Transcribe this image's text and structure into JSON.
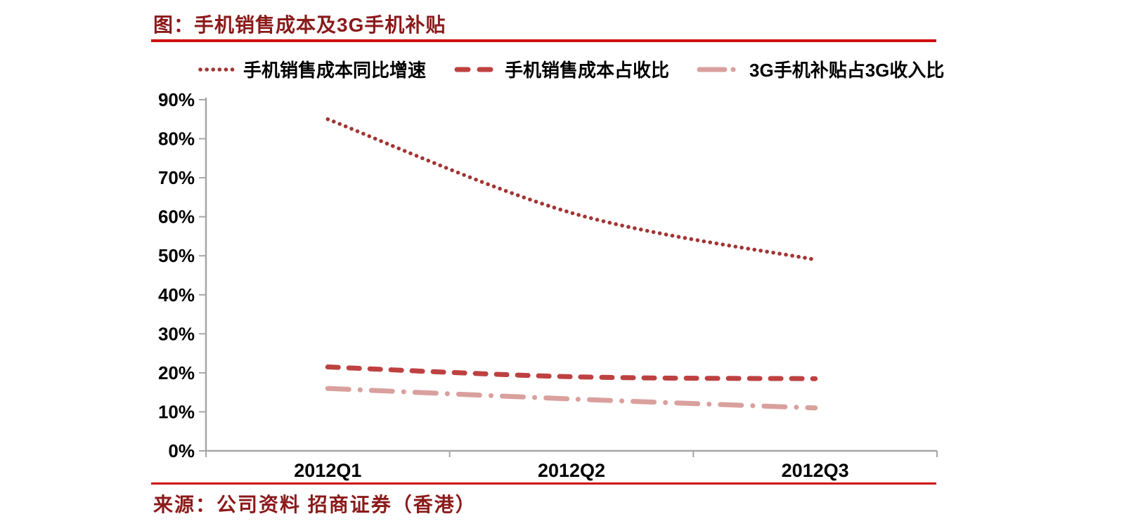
{
  "header": {
    "title": "图：手机销售成本及3G手机补贴"
  },
  "chart_data": {
    "type": "line",
    "title": "图：手机销售成本及3G手机补贴",
    "categories": [
      "2012Q1",
      "2012Q2",
      "2012Q3"
    ],
    "series": [
      {
        "name": "手机销售成本同比增速",
        "style": "dotted",
        "color": "#A23434",
        "values": [
          85,
          61,
          49
        ]
      },
      {
        "name": "手机销售成本占收比",
        "style": "dashed",
        "color": "#BE4141",
        "values": [
          21.5,
          19,
          18.5
        ]
      },
      {
        "name": "3G手机补贴占3G收入比",
        "style": "dash-dot",
        "color": "#D9A09E",
        "values": [
          16,
          13.3,
          11
        ]
      }
    ],
    "ylim": [
      0,
      90
    ],
    "ytick_step": 10,
    "ytick_suffix": "%",
    "legend_position": "top",
    "grid": false,
    "axis_color": "#A6A6A6",
    "label_color": "#000000"
  },
  "footer": {
    "source": "来源：公司资料 招商证券（香港）"
  }
}
